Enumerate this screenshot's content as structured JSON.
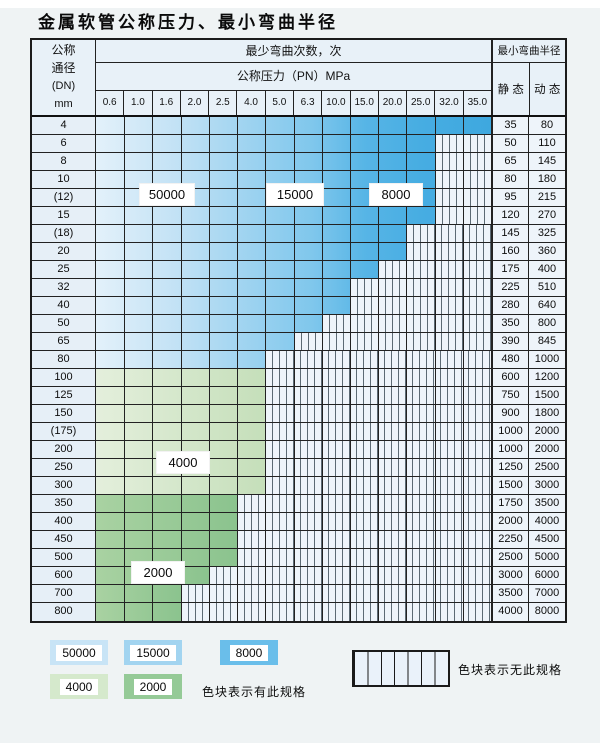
{
  "title": "金属软管公称压力、最小弯曲半径",
  "table": {
    "dn_header_lines": [
      "公称",
      "通径",
      "(DN)",
      "mm"
    ],
    "cycles_header": "最少弯曲次数，次",
    "pressure_header": "公称压力（PN）MPa",
    "radius_header": "最小弯曲半径",
    "static_header": "静 态",
    "dynamic_header": "动 态",
    "pressure_columns": [
      "0.6",
      "1.0",
      "1.6",
      "2.0",
      "2.5",
      "4.0",
      "5.0",
      "6.3",
      "10.0",
      "15.0",
      "20.0",
      "25.0",
      "32.0",
      "35.0"
    ]
  },
  "zone_labels": [
    {
      "text": "50000"
    },
    {
      "text": "15000"
    },
    {
      "text": "8000"
    },
    {
      "text": "4000"
    },
    {
      "text": "2000"
    }
  ],
  "legend": {
    "items": [
      {
        "label": "50000",
        "color": "#c8e4f6"
      },
      {
        "label": "15000",
        "color": "#a2d4f0"
      },
      {
        "label": "8000",
        "color": "#6abeea"
      },
      {
        "label": "4000",
        "color": "#d5e9cc"
      },
      {
        "label": "2000",
        "color": "#95ca97"
      }
    ],
    "available_note": "色块表示有此规格",
    "unavailable_note": "色块表示无此规格"
  },
  "chart_data": {
    "type": "heatmap",
    "title": "金属软管公称压力、最小弯曲半径",
    "x_axis_label": "公称压力（PN）MPa",
    "x_categories": [
      "0.6",
      "1.0",
      "1.6",
      "2.0",
      "2.5",
      "4.0",
      "5.0",
      "6.3",
      "10.0",
      "15.0",
      "20.0",
      "25.0",
      "32.0",
      "35.0"
    ],
    "y_axis_label": "公称通径 (DN) mm",
    "cycle_zone_labels_blue": [
      "50000",
      "15000",
      "8000"
    ],
    "cycle_zone_labels_green": [
      "4000",
      "2000"
    ],
    "legend_meaning": {
      "colored": "色块表示有此规格",
      "hatched": "色块表示无此规格"
    },
    "rows": [
      {
        "dn": "4",
        "zone": "blue",
        "colored_cols": 14,
        "max_pn": "35.0",
        "static": "35",
        "dynamic": "80"
      },
      {
        "dn": "6",
        "zone": "blue",
        "colored_cols": 12,
        "max_pn": "25.0",
        "static": "50",
        "dynamic": "110"
      },
      {
        "dn": "8",
        "zone": "blue",
        "colored_cols": 12,
        "max_pn": "25.0",
        "static": "65",
        "dynamic": "145"
      },
      {
        "dn": "10",
        "zone": "blue",
        "colored_cols": 12,
        "max_pn": "25.0",
        "static": "80",
        "dynamic": "180"
      },
      {
        "dn": "(12)",
        "zone": "blue",
        "colored_cols": 12,
        "max_pn": "25.0",
        "static": "95",
        "dynamic": "215"
      },
      {
        "dn": "15",
        "zone": "blue",
        "colored_cols": 12,
        "max_pn": "25.0",
        "static": "120",
        "dynamic": "270"
      },
      {
        "dn": "(18)",
        "zone": "blue",
        "colored_cols": 11,
        "max_pn": "20.0",
        "static": "145",
        "dynamic": "325"
      },
      {
        "dn": "20",
        "zone": "blue",
        "colored_cols": 11,
        "max_pn": "20.0",
        "static": "160",
        "dynamic": "360"
      },
      {
        "dn": "25",
        "zone": "blue",
        "colored_cols": 10,
        "max_pn": "15.0",
        "static": "175",
        "dynamic": "400"
      },
      {
        "dn": "32",
        "zone": "blue",
        "colored_cols": 9,
        "max_pn": "10.0",
        "static": "225",
        "dynamic": "510"
      },
      {
        "dn": "40",
        "zone": "blue",
        "colored_cols": 9,
        "max_pn": "10.0",
        "static": "280",
        "dynamic": "640"
      },
      {
        "dn": "50",
        "zone": "blue",
        "colored_cols": 8,
        "max_pn": "6.3",
        "static": "350",
        "dynamic": "800"
      },
      {
        "dn": "65",
        "zone": "blue",
        "colored_cols": 7,
        "max_pn": "5.0",
        "static": "390",
        "dynamic": "845"
      },
      {
        "dn": "80",
        "zone": "blue",
        "colored_cols": 6,
        "max_pn": "4.0",
        "static": "480",
        "dynamic": "1000"
      },
      {
        "dn": "100",
        "zone": "green_light",
        "colored_cols": 6,
        "max_pn": "4.0",
        "static": "600",
        "dynamic": "1200"
      },
      {
        "dn": "125",
        "zone": "green_light",
        "colored_cols": 6,
        "max_pn": "4.0",
        "static": "750",
        "dynamic": "1500"
      },
      {
        "dn": "150",
        "zone": "green_light",
        "colored_cols": 6,
        "max_pn": "4.0",
        "static": "900",
        "dynamic": "1800"
      },
      {
        "dn": "(175)",
        "zone": "green_light",
        "colored_cols": 6,
        "max_pn": "4.0",
        "static": "1000",
        "dynamic": "2000"
      },
      {
        "dn": "200",
        "zone": "green_light",
        "colored_cols": 6,
        "max_pn": "4.0",
        "static": "1000",
        "dynamic": "2000"
      },
      {
        "dn": "250",
        "zone": "green_light",
        "colored_cols": 6,
        "max_pn": "4.0",
        "static": "1250",
        "dynamic": "2500"
      },
      {
        "dn": "300",
        "zone": "green_light",
        "colored_cols": 6,
        "max_pn": "4.0",
        "static": "1500",
        "dynamic": "3000"
      },
      {
        "dn": "350",
        "zone": "green_dark",
        "colored_cols": 5,
        "max_pn": "2.5",
        "static": "1750",
        "dynamic": "3500"
      },
      {
        "dn": "400",
        "zone": "green_dark",
        "colored_cols": 5,
        "max_pn": "2.5",
        "static": "2000",
        "dynamic": "4000"
      },
      {
        "dn": "450",
        "zone": "green_dark",
        "colored_cols": 5,
        "max_pn": "2.5",
        "static": "2250",
        "dynamic": "4500"
      },
      {
        "dn": "500",
        "zone": "green_dark",
        "colored_cols": 5,
        "max_pn": "2.5",
        "static": "2500",
        "dynamic": "5000"
      },
      {
        "dn": "600",
        "zone": "green_dark",
        "colored_cols": 4,
        "max_pn": "2.0",
        "static": "3000",
        "dynamic": "6000"
      },
      {
        "dn": "700",
        "zone": "green_dark",
        "colored_cols": 3,
        "max_pn": "1.6",
        "static": "3500",
        "dynamic": "7000"
      },
      {
        "dn": "800",
        "zone": "green_dark",
        "colored_cols": 3,
        "max_pn": "1.6",
        "static": "4000",
        "dynamic": "8000"
      }
    ]
  }
}
